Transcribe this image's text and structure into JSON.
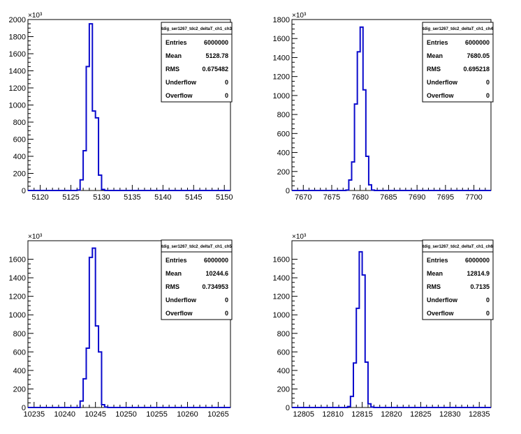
{
  "chart_data": [
    {
      "type": "bar",
      "title": "tdig_ser1267_tdc2_deltaT_ch1_ch3",
      "multiplier": "×10³",
      "xlim": [
        5118,
        5151
      ],
      "ylim": [
        0,
        2000
      ],
      "x_ticks": [
        "5120",
        "5125",
        "5130",
        "5135",
        "5140",
        "5145",
        "5150"
      ],
      "x_tick_values": [
        5120,
        5125,
        5130,
        5135,
        5140,
        5145,
        5150
      ],
      "y_ticks": [
        "0",
        "200",
        "400",
        "600",
        "800",
        "1000",
        "1200",
        "1400",
        "1600",
        "1800",
        "2000"
      ],
      "y_tick_values": [
        0,
        200,
        400,
        600,
        800,
        1000,
        1200,
        1400,
        1600,
        1800,
        2000
      ],
      "bins": [
        {
          "x0": 5126,
          "x1": 5126.5,
          "y": 5
        },
        {
          "x0": 5126.5,
          "x1": 5127,
          "y": 125
        },
        {
          "x0": 5127,
          "x1": 5127.5,
          "y": 465
        },
        {
          "x0": 5127.5,
          "x1": 5128,
          "y": 1450
        },
        {
          "x0": 5128,
          "x1": 5128.5,
          "y": 1950
        },
        {
          "x0": 5128.5,
          "x1": 5129,
          "y": 930
        },
        {
          "x0": 5129,
          "x1": 5129.5,
          "y": 850
        },
        {
          "x0": 5129.5,
          "x1": 5130,
          "y": 180
        },
        {
          "x0": 5130,
          "x1": 5130.5,
          "y": 12
        }
      ],
      "stats": [
        {
          "label": "Entries",
          "value": "6000000"
        },
        {
          "label": "Mean",
          "value": "5128.78"
        },
        {
          "label": "RMS",
          "value": "0.675482"
        },
        {
          "label": "Underflow",
          "value": "0"
        },
        {
          "label": "Overflow",
          "value": "0"
        }
      ]
    },
    {
      "type": "bar",
      "title": "tdig_ser1267_tdc2_deltaT_ch1_ch4",
      "multiplier": "×10³",
      "xlim": [
        7668,
        7703
      ],
      "ylim": [
        0,
        1800
      ],
      "x_ticks": [
        "7670",
        "7675",
        "7680",
        "7685",
        "7690",
        "7695",
        "7700"
      ],
      "x_tick_values": [
        7670,
        7675,
        7680,
        7685,
        7690,
        7695,
        7700
      ],
      "y_ticks": [
        "0",
        "200",
        "400",
        "600",
        "800",
        "1000",
        "1200",
        "1400",
        "1600",
        "1800"
      ],
      "y_tick_values": [
        0,
        200,
        400,
        600,
        800,
        1000,
        1200,
        1400,
        1600,
        1800
      ],
      "bins": [
        {
          "x0": 7677.5,
          "x1": 7678,
          "y": 5
        },
        {
          "x0": 7678,
          "x1": 7678.5,
          "y": 110
        },
        {
          "x0": 7678.5,
          "x1": 7679,
          "y": 300
        },
        {
          "x0": 7679,
          "x1": 7679.5,
          "y": 910
        },
        {
          "x0": 7679.5,
          "x1": 7680,
          "y": 1460
        },
        {
          "x0": 7680,
          "x1": 7680.5,
          "y": 1720
        },
        {
          "x0": 7680.5,
          "x1": 7681,
          "y": 1060
        },
        {
          "x0": 7681,
          "x1": 7681.5,
          "y": 360
        },
        {
          "x0": 7681.5,
          "x1": 7682,
          "y": 60
        },
        {
          "x0": 7682,
          "x1": 7682.5,
          "y": 5
        }
      ],
      "stats": [
        {
          "label": "Entries",
          "value": "6000000"
        },
        {
          "label": "Mean",
          "value": "7680.05"
        },
        {
          "label": "RMS",
          "value": "0.695218"
        },
        {
          "label": "Underflow",
          "value": "0"
        },
        {
          "label": "Overflow",
          "value": "0"
        }
      ]
    },
    {
      "type": "bar",
      "title": "tdig_ser1267_tdc2_deltaT_ch1_ch5",
      "multiplier": "×10³",
      "xlim": [
        10234,
        10267
      ],
      "ylim": [
        0,
        1800
      ],
      "x_ticks": [
        "10235",
        "10240",
        "10245",
        "10250",
        "10255",
        "10260",
        "10265"
      ],
      "x_tick_values": [
        10235,
        10240,
        10245,
        10250,
        10255,
        10260,
        10265
      ],
      "y_ticks": [
        "0",
        "200",
        "400",
        "600",
        "800",
        "1000",
        "1200",
        "1400",
        "1600"
      ],
      "y_tick_values": [
        0,
        200,
        400,
        600,
        800,
        1000,
        1200,
        1400,
        1600
      ],
      "bins": [
        {
          "x0": 10242.5,
          "x1": 10243,
          "y": 70
        },
        {
          "x0": 10243,
          "x1": 10243.5,
          "y": 310
        },
        {
          "x0": 10243.5,
          "x1": 10244,
          "y": 640
        },
        {
          "x0": 10244,
          "x1": 10244.5,
          "y": 1620
        },
        {
          "x0": 10244.5,
          "x1": 10245,
          "y": 1720
        },
        {
          "x0": 10245,
          "x1": 10245.5,
          "y": 880
        },
        {
          "x0": 10245.5,
          "x1": 10246,
          "y": 600
        },
        {
          "x0": 10246,
          "x1": 10246.5,
          "y": 30
        },
        {
          "x0": 10246.5,
          "x1": 10247,
          "y": 5
        }
      ],
      "stats": [
        {
          "label": "Entries",
          "value": "6000000"
        },
        {
          "label": "Mean",
          "value": "10244.6"
        },
        {
          "label": "RMS",
          "value": "0.734953"
        },
        {
          "label": "Underflow",
          "value": "0"
        },
        {
          "label": "Overflow",
          "value": "0"
        }
      ]
    },
    {
      "type": "bar",
      "title": "tdig_ser1267_tdc2_deltaT_ch1_ch6",
      "multiplier": "×10³",
      "xlim": [
        12803,
        12837
      ],
      "ylim": [
        0,
        1800
      ],
      "x_ticks": [
        "12805",
        "12810",
        "12815",
        "12820",
        "12825",
        "12830",
        "12835"
      ],
      "x_tick_values": [
        12805,
        12810,
        12815,
        12820,
        12825,
        12830,
        12835
      ],
      "y_ticks": [
        "0",
        "200",
        "400",
        "600",
        "800",
        "1000",
        "1200",
        "1400",
        "1600"
      ],
      "y_tick_values": [
        0,
        200,
        400,
        600,
        800,
        1000,
        1200,
        1400,
        1600
      ],
      "bins": [
        {
          "x0": 12812.5,
          "x1": 12813,
          "y": 10
        },
        {
          "x0": 12813,
          "x1": 12813.5,
          "y": 120
        },
        {
          "x0": 12813.5,
          "x1": 12814,
          "y": 480
        },
        {
          "x0": 12814,
          "x1": 12814.5,
          "y": 1070
        },
        {
          "x0": 12814.5,
          "x1": 12815,
          "y": 1680
        },
        {
          "x0": 12815,
          "x1": 12815.5,
          "y": 1430
        },
        {
          "x0": 12815.5,
          "x1": 12816,
          "y": 490
        },
        {
          "x0": 12816,
          "x1": 12816.5,
          "y": 40
        },
        {
          "x0": 12816.5,
          "x1": 12817,
          "y": 5
        }
      ],
      "stats": [
        {
          "label": "Entries",
          "value": "6000000"
        },
        {
          "label": "Mean",
          "value": "12814.9"
        },
        {
          "label": "RMS",
          "value": "0.7135"
        },
        {
          "label": "Underflow",
          "value": "0"
        },
        {
          "label": "Overflow",
          "value": "0"
        }
      ]
    }
  ],
  "colors": {
    "line": "#0a0acc",
    "axis": "#000000",
    "background": "#ffffff"
  }
}
